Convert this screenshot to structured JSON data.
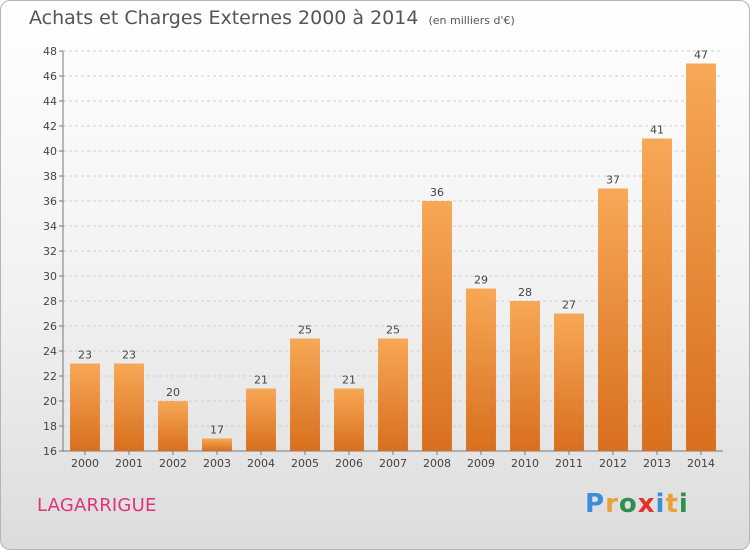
{
  "title": "Achats et Charges Externes 2000 à 2014",
  "unit": "(en milliers d'€)",
  "commune": "LAGARRIGUE",
  "logo": {
    "letters": [
      "P",
      "r",
      "o",
      "x",
      "i",
      "t",
      "i"
    ],
    "colors": [
      "#3a8fd8",
      "#e8a23a",
      "#2f8f4e",
      "#e8312a",
      "#3a8fd8",
      "#e8a23a",
      "#2f8f4e"
    ]
  },
  "chart_data": {
    "type": "bar",
    "categories": [
      "2000",
      "2001",
      "2002",
      "2003",
      "2004",
      "2005",
      "2006",
      "2007",
      "2008",
      "2009",
      "2010",
      "2011",
      "2012",
      "2013",
      "2014"
    ],
    "values": [
      23,
      23,
      20,
      17,
      21,
      25,
      21,
      25,
      36,
      29,
      28,
      27,
      37,
      41,
      47
    ],
    "ylim": [
      16,
      48
    ],
    "yticks": [
      16,
      18,
      20,
      22,
      24,
      26,
      28,
      30,
      32,
      34,
      36,
      38,
      40,
      42,
      44,
      46,
      48
    ],
    "grid": true,
    "bar_color_top": "#f7a856",
    "bar_color_bottom": "#d86f1e"
  }
}
